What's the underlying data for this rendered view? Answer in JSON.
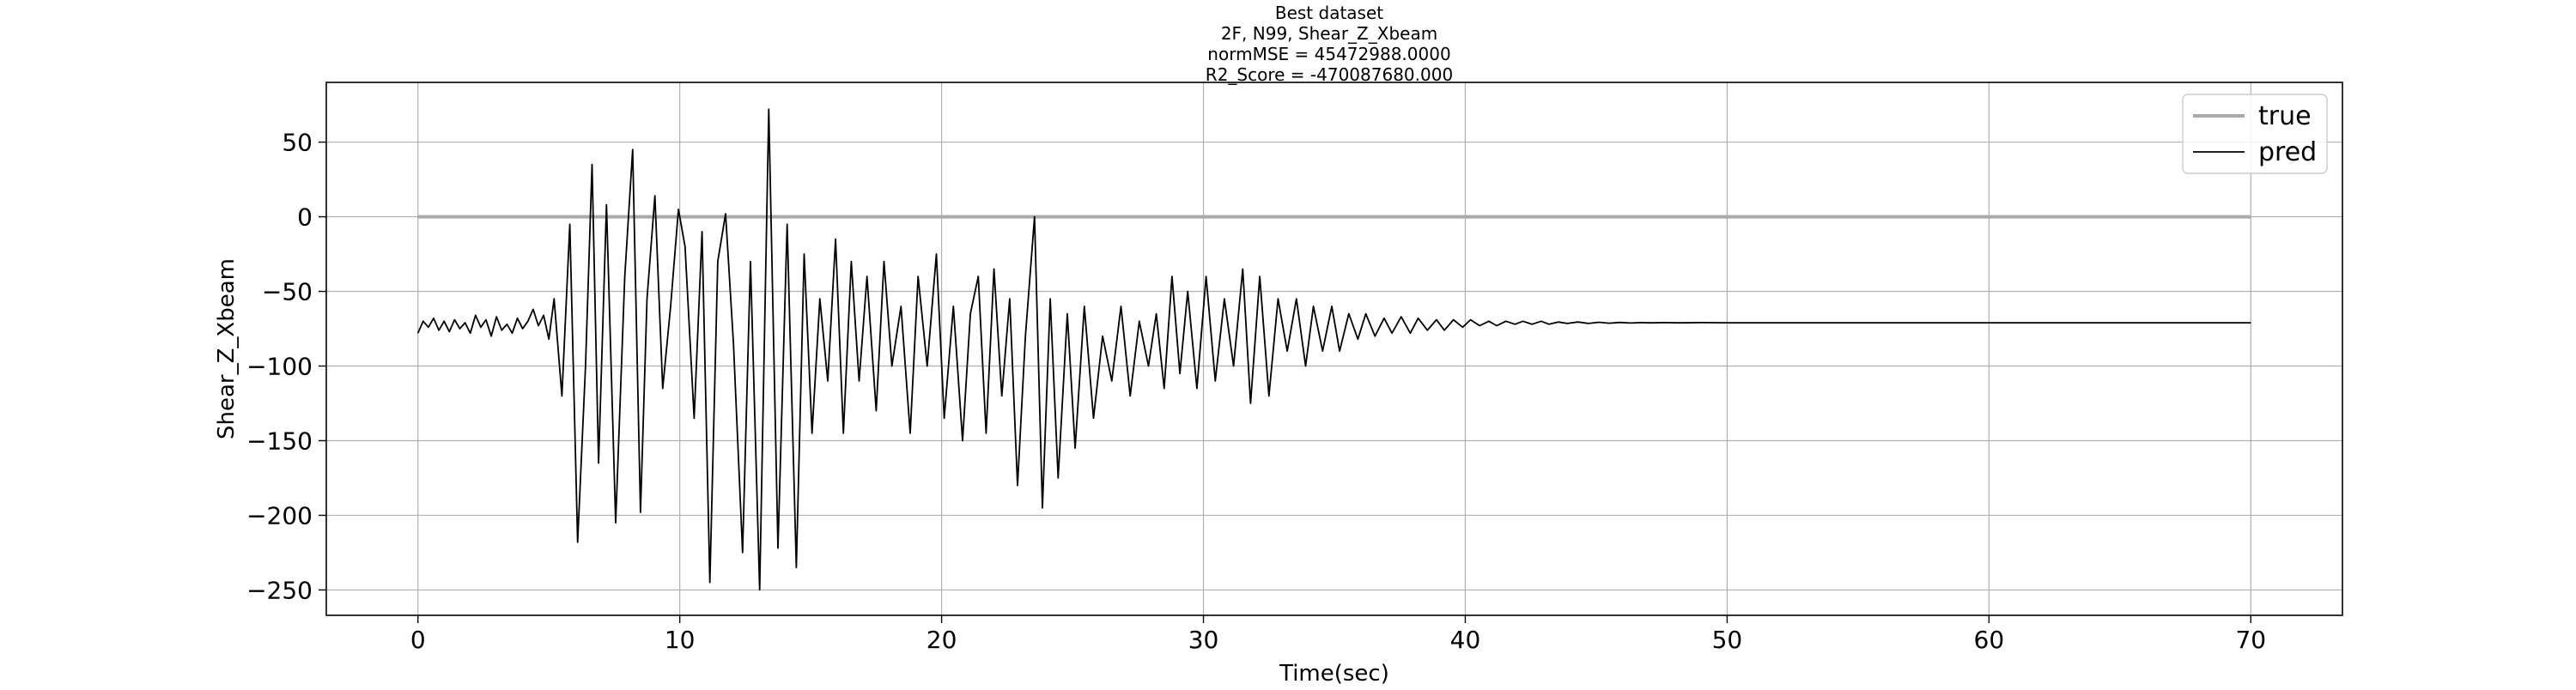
{
  "chart_data": {
    "type": "line",
    "title_lines": [
      "Best dataset",
      "2F, N99, Shear_Z_Xbeam",
      "normMSE = 45472988.0000",
      "R2_Score = -470087680.000"
    ],
    "xlabel": "Time(sec)",
    "ylabel": "Shear_Z_Xbeam",
    "xlim": [
      -3.5,
      73.5
    ],
    "ylim": [
      -267,
      90
    ],
    "x_ticks": [
      0,
      10,
      20,
      30,
      40,
      50,
      60,
      70
    ],
    "y_ticks": [
      50,
      0,
      -50,
      -100,
      -150,
      -200,
      -250
    ],
    "x_tick_labels": [
      "0",
      "10",
      "20",
      "30",
      "40",
      "50",
      "60",
      "70"
    ],
    "y_tick_labels": [
      "50",
      "0",
      "−50",
      "−100",
      "−150",
      "−200",
      "−250"
    ],
    "grid": true,
    "legend_position": "top-right",
    "series": [
      {
        "name": "true",
        "color": "#aaaaaa",
        "points": [
          [
            0,
            0
          ],
          [
            70,
            0
          ]
        ]
      },
      {
        "name": "pred",
        "color": "#000000",
        "points": [
          [
            0.0,
            -78
          ],
          [
            0.2,
            -70
          ],
          [
            0.4,
            -74
          ],
          [
            0.6,
            -68
          ],
          [
            0.8,
            -76
          ],
          [
            1.0,
            -70
          ],
          [
            1.2,
            -77
          ],
          [
            1.4,
            -69
          ],
          [
            1.6,
            -75
          ],
          [
            1.8,
            -71
          ],
          [
            2.0,
            -78
          ],
          [
            2.2,
            -66
          ],
          [
            2.4,
            -74
          ],
          [
            2.6,
            -69
          ],
          [
            2.8,
            -80
          ],
          [
            3.0,
            -67
          ],
          [
            3.2,
            -76
          ],
          [
            3.4,
            -72
          ],
          [
            3.6,
            -78
          ],
          [
            3.8,
            -68
          ],
          [
            4.0,
            -75
          ],
          [
            4.2,
            -70
          ],
          [
            4.4,
            -62
          ],
          [
            4.6,
            -73
          ],
          [
            4.8,
            -66
          ],
          [
            5.0,
            -82
          ],
          [
            5.2,
            -55
          ],
          [
            5.5,
            -120
          ],
          [
            5.8,
            -5
          ],
          [
            6.1,
            -218
          ],
          [
            6.4,
            -100
          ],
          [
            6.65,
            35
          ],
          [
            6.9,
            -165
          ],
          [
            7.2,
            8
          ],
          [
            7.55,
            -205
          ],
          [
            7.9,
            -40
          ],
          [
            8.2,
            45
          ],
          [
            8.5,
            -198
          ],
          [
            8.75,
            -55
          ],
          [
            9.05,
            14
          ],
          [
            9.35,
            -115
          ],
          [
            9.65,
            -60
          ],
          [
            9.95,
            5
          ],
          [
            10.2,
            -20
          ],
          [
            10.55,
            -135
          ],
          [
            10.85,
            -10
          ],
          [
            11.15,
            -245
          ],
          [
            11.45,
            -30
          ],
          [
            11.75,
            2
          ],
          [
            12.05,
            -85
          ],
          [
            12.4,
            -225
          ],
          [
            12.7,
            -30
          ],
          [
            13.05,
            -250
          ],
          [
            13.4,
            72
          ],
          [
            13.75,
            -222
          ],
          [
            14.1,
            -5
          ],
          [
            14.45,
            -235
          ],
          [
            14.75,
            -25
          ],
          [
            15.05,
            -145
          ],
          [
            15.35,
            -55
          ],
          [
            15.65,
            -110
          ],
          [
            15.95,
            -15
          ],
          [
            16.25,
            -145
          ],
          [
            16.55,
            -30
          ],
          [
            16.85,
            -110
          ],
          [
            17.15,
            -40
          ],
          [
            17.5,
            -130
          ],
          [
            17.8,
            -30
          ],
          [
            18.1,
            -100
          ],
          [
            18.45,
            -60
          ],
          [
            18.8,
            -145
          ],
          [
            19.1,
            -40
          ],
          [
            19.45,
            -100
          ],
          [
            19.8,
            -25
          ],
          [
            20.1,
            -135
          ],
          [
            20.45,
            -60
          ],
          [
            20.8,
            -150
          ],
          [
            21.1,
            -65
          ],
          [
            21.4,
            -40
          ],
          [
            21.7,
            -145
          ],
          [
            22.0,
            -35
          ],
          [
            22.3,
            -120
          ],
          [
            22.6,
            -55
          ],
          [
            22.9,
            -180
          ],
          [
            23.2,
            -80
          ],
          [
            23.55,
            0
          ],
          [
            23.85,
            -195
          ],
          [
            24.15,
            -55
          ],
          [
            24.45,
            -175
          ],
          [
            24.8,
            -65
          ],
          [
            25.1,
            -155
          ],
          [
            25.45,
            -60
          ],
          [
            25.8,
            -135
          ],
          [
            26.15,
            -80
          ],
          [
            26.5,
            -110
          ],
          [
            26.85,
            -60
          ],
          [
            27.2,
            -120
          ],
          [
            27.55,
            -70
          ],
          [
            27.9,
            -100
          ],
          [
            28.2,
            -65
          ],
          [
            28.5,
            -115
          ],
          [
            28.8,
            -40
          ],
          [
            29.1,
            -105
          ],
          [
            29.4,
            -50
          ],
          [
            29.75,
            -115
          ],
          [
            30.1,
            -40
          ],
          [
            30.45,
            -110
          ],
          [
            30.8,
            -55
          ],
          [
            31.15,
            -100
          ],
          [
            31.5,
            -35
          ],
          [
            31.8,
            -125
          ],
          [
            32.15,
            -40
          ],
          [
            32.5,
            -120
          ],
          [
            32.85,
            -55
          ],
          [
            33.2,
            -90
          ],
          [
            33.55,
            -55
          ],
          [
            33.9,
            -100
          ],
          [
            34.2,
            -60
          ],
          [
            34.55,
            -90
          ],
          [
            34.9,
            -60
          ],
          [
            35.2,
            -90
          ],
          [
            35.55,
            -65
          ],
          [
            35.9,
            -82
          ],
          [
            36.2,
            -65
          ],
          [
            36.55,
            -80
          ],
          [
            36.9,
            -68
          ],
          [
            37.2,
            -78
          ],
          [
            37.55,
            -67
          ],
          [
            37.9,
            -78
          ],
          [
            38.2,
            -68
          ],
          [
            38.55,
            -76
          ],
          [
            38.9,
            -69
          ],
          [
            39.2,
            -76
          ],
          [
            39.55,
            -69
          ],
          [
            39.9,
            -74
          ],
          [
            40.2,
            -69
          ],
          [
            40.55,
            -73
          ],
          [
            40.9,
            -70
          ],
          [
            41.2,
            -73
          ],
          [
            41.55,
            -70
          ],
          [
            41.9,
            -72
          ],
          [
            42.2,
            -70
          ],
          [
            42.55,
            -72
          ],
          [
            42.9,
            -70
          ],
          [
            43.2,
            -72
          ],
          [
            43.55,
            -70.5
          ],
          [
            43.9,
            -71.5
          ],
          [
            44.3,
            -70.5
          ],
          [
            44.7,
            -71.5
          ],
          [
            45.1,
            -70.7
          ],
          [
            45.5,
            -71.3
          ],
          [
            45.9,
            -70.8
          ],
          [
            46.3,
            -71.2
          ],
          [
            46.7,
            -70.9
          ],
          [
            47.1,
            -71.1
          ],
          [
            47.6,
            -70.9
          ],
          [
            48.2,
            -71.1
          ],
          [
            49.0,
            -70.9
          ],
          [
            50.0,
            -71
          ],
          [
            60.0,
            -71
          ],
          [
            70.0,
            -71
          ]
        ]
      }
    ]
  }
}
